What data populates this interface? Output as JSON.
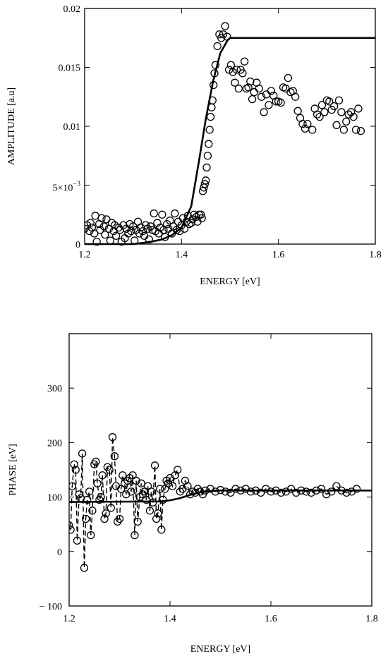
{
  "chart_data": [
    {
      "type": "scatter",
      "xlabel": "ENERGY [eV]",
      "ylabel": "AMPLITUDE [a.u]",
      "xlim": [
        1.2,
        1.8
      ],
      "ylim": [
        0,
        0.02
      ],
      "x_ticks": [
        {
          "value": 1.2,
          "label": "1.2"
        },
        {
          "value": 1.4,
          "label": "1.4"
        },
        {
          "value": 1.6,
          "label": "1.6"
        },
        {
          "value": 1.8,
          "label": "1.8"
        }
      ],
      "y_ticks": [
        {
          "value": 0,
          "label": "0"
        },
        {
          "value": 0.005,
          "label": "5×10",
          "sup": "−3"
        },
        {
          "value": 0.01,
          "label": "0.01"
        },
        {
          "value": 0.015,
          "label": "0.015"
        },
        {
          "value": 0.02,
          "label": "0.02"
        }
      ],
      "series": [
        {
          "style": "solid-line",
          "x": [
            1.2,
            1.3,
            1.32,
            1.34,
            1.36,
            1.38,
            1.4,
            1.42,
            1.435,
            1.45,
            1.465,
            1.48,
            1.495,
            1.5,
            1.8
          ],
          "y": [
            0,
            0,
            0.0001,
            0.00022,
            0.0004,
            0.00075,
            0.0014,
            0.0032,
            0.0068,
            0.0106,
            0.0138,
            0.0162,
            0.0173,
            0.0175,
            0.0175
          ]
        },
        {
          "style": "circles",
          "x": [
            1.2,
            1.205,
            1.21,
            1.212,
            1.215,
            1.22,
            1.222,
            1.225,
            1.23,
            1.232,
            1.235,
            1.24,
            1.242,
            1.245,
            1.25,
            1.253,
            1.256,
            1.26,
            1.262,
            1.265,
            1.27,
            1.273,
            1.276,
            1.28,
            1.283,
            1.286,
            1.29,
            1.293,
            1.296,
            1.3,
            1.303,
            1.306,
            1.31,
            1.313,
            1.316,
            1.32,
            1.323,
            1.326,
            1.33,
            1.333,
            1.336,
            1.34,
            1.343,
            1.346,
            1.35,
            1.353,
            1.356,
            1.36,
            1.363,
            1.366,
            1.37,
            1.373,
            1.376,
            1.38,
            1.383,
            1.386,
            1.39,
            1.393,
            1.396,
            1.4,
            1.403,
            1.406,
            1.41,
            1.413,
            1.416,
            1.42,
            1.423,
            1.426,
            1.43,
            1.433,
            1.436,
            1.44,
            1.442,
            1.444,
            1.446,
            1.448,
            1.45,
            1.452,
            1.454,
            1.456,
            1.458,
            1.46,
            1.462,
            1.464,
            1.466,
            1.468,
            1.47,
            1.474,
            1.478,
            1.482,
            1.486,
            1.49,
            1.494,
            1.498,
            1.502,
            1.506,
            1.51,
            1.514,
            1.518,
            1.522,
            1.526,
            1.53,
            1.534,
            1.538,
            1.542,
            1.546,
            1.55,
            1.555,
            1.56,
            1.565,
            1.57,
            1.575,
            1.58,
            1.585,
            1.59,
            1.595,
            1.6,
            1.605,
            1.61,
            1.615,
            1.62,
            1.625,
            1.63,
            1.635,
            1.64,
            1.645,
            1.65,
            1.655,
            1.66,
            1.67,
            1.675,
            1.68,
            1.685,
            1.69,
            1.695,
            1.7,
            1.705,
            1.71,
            1.715,
            1.72,
            1.725,
            1.73,
            1.735,
            1.74,
            1.745,
            1.75,
            1.755,
            1.76,
            1.765,
            1.77
          ],
          "y": [
            0.0013,
            0.0016,
            0.0011,
            0.0018,
            0.0014,
            0.0009,
            0.0024,
            0.0002,
            0.0017,
            0.0012,
            0.0022,
            0.0015,
            0.0008,
            0.0021,
            0.0013,
            0.0003,
            0.0018,
            0.0011,
            0.0016,
            0.0007,
            0.0014,
            0.0012,
            0.0002,
            0.0016,
            0.0005,
            0.0013,
            0.0009,
            0.0017,
            0.0011,
            0.0015,
            0.0003,
            0.0012,
            0.0019,
            0.0009,
            0.0014,
            0.0011,
            0.0007,
            0.0016,
            0.0013,
            0.0004,
            0.0015,
            0.0012,
            0.0026,
            0.0011,
            0.0018,
            0.0009,
            0.0014,
            0.0025,
            0.0012,
            0.0006,
            0.0017,
            0.0013,
            0.002,
            0.0009,
            0.0015,
            0.0026,
            0.0012,
            0.0019,
            0.0011,
            0.0016,
            0.0022,
            0.0013,
            0.0019,
            0.0024,
            0.0017,
            0.0018,
            0.0021,
            0.0025,
            0.0023,
            0.0019,
            0.0025,
            0.0025,
            0.0022,
            0.0045,
            0.0048,
            0.0051,
            0.0054,
            0.0065,
            0.0075,
            0.0085,
            0.0097,
            0.0108,
            0.0116,
            0.0122,
            0.0135,
            0.0145,
            0.0152,
            0.0168,
            0.0178,
            0.0175,
            0.0178,
            0.0185,
            0.0176,
            0.0148,
            0.0152,
            0.0146,
            0.0137,
            0.0148,
            0.0132,
            0.0148,
            0.0145,
            0.0155,
            0.0132,
            0.0133,
            0.0138,
            0.0123,
            0.0129,
            0.0137,
            0.0132,
            0.0125,
            0.0112,
            0.0127,
            0.0118,
            0.013,
            0.0126,
            0.0121,
            0.0121,
            0.012,
            0.0133,
            0.0132,
            0.0141,
            0.0129,
            0.013,
            0.0125,
            0.0113,
            0.0107,
            0.0102,
            0.0098,
            0.0102,
            0.0097,
            0.0115,
            0.011,
            0.0108,
            0.0118,
            0.0112,
            0.0122,
            0.0121,
            0.0114,
            0.0117,
            0.0101,
            0.0122,
            0.0112,
            0.0097,
            0.0104,
            0.011,
            0.0112,
            0.0108,
            0.0097,
            0.0115,
            0.0096
          ]
        }
      ]
    },
    {
      "type": "scatter",
      "xlabel": "ENERGY [eV]",
      "ylabel": "PHASE [eV]",
      "xlim": [
        1.2,
        1.8
      ],
      "ylim": [
        -100,
        400
      ],
      "x_ticks": [
        {
          "value": 1.2,
          "label": "1.2"
        },
        {
          "value": 1.4,
          "label": "1.4"
        },
        {
          "value": 1.6,
          "label": "1.6"
        },
        {
          "value": 1.8,
          "label": "1.8"
        }
      ],
      "y_ticks": [
        {
          "value": -100,
          "label": "− 100"
        },
        {
          "value": 0,
          "label": "0"
        },
        {
          "value": 100,
          "label": "100"
        },
        {
          "value": 200,
          "label": "200"
        },
        {
          "value": 300,
          "label": "300"
        }
      ],
      "series": [
        {
          "style": "solid-line",
          "x": [
            1.2,
            1.38,
            1.4,
            1.42,
            1.44,
            1.46,
            1.48,
            1.5,
            1.55,
            1.8
          ],
          "y": [
            91,
            92,
            94,
            98,
            104,
            109,
            111,
            112,
            112,
            112
          ]
        },
        {
          "style": "circles-dashed",
          "x": [
            1.2,
            1.203,
            1.206,
            1.21,
            1.213,
            1.216,
            1.22,
            1.223,
            1.226,
            1.23,
            1.233,
            1.236,
            1.24,
            1.243,
            1.246,
            1.25,
            1.253,
            1.256,
            1.26,
            1.263,
            1.266,
            1.27,
            1.273,
            1.276,
            1.28,
            1.283,
            1.286,
            1.29,
            1.293,
            1.296,
            1.3,
            1.303,
            1.306,
            1.31,
            1.313,
            1.316,
            1.32,
            1.323,
            1.326,
            1.33,
            1.333,
            1.336,
            1.34,
            1.343,
            1.346,
            1.35,
            1.353,
            1.356,
            1.36,
            1.363,
            1.366,
            1.37,
            1.373,
            1.376,
            1.38,
            1.383,
            1.386,
            1.39,
            1.393,
            1.396,
            1.4,
            1.405,
            1.41,
            1.415,
            1.42,
            1.425,
            1.43,
            1.435,
            1.44,
            1.445,
            1.45,
            1.455,
            1.46,
            1.465,
            1.47,
            1.48,
            1.49,
            1.5,
            1.51,
            1.52,
            1.53,
            1.54,
            1.55,
            1.56,
            1.57,
            1.58,
            1.59,
            1.6,
            1.61,
            1.62,
            1.63,
            1.64,
            1.65,
            1.66,
            1.67,
            1.68,
            1.69,
            1.7,
            1.71,
            1.72,
            1.73,
            1.74,
            1.75,
            1.76,
            1.77
          ],
          "y": [
            48,
            40,
            120,
            160,
            150,
            20,
            105,
            98,
            180,
            -30,
            60,
            95,
            110,
            30,
            75,
            160,
            165,
            125,
            95,
            100,
            140,
            60,
            70,
            155,
            150,
            80,
            210,
            175,
            120,
            55,
            60,
            115,
            140,
            125,
            105,
            130,
            135,
            110,
            140,
            30,
            130,
            55,
            100,
            125,
            105,
            110,
            95,
            120,
            75,
            110,
            90,
            158,
            60,
            70,
            115,
            40,
            95,
            115,
            130,
            125,
            135,
            120,
            140,
            150,
            110,
            115,
            130,
            120,
            105,
            110,
            108,
            115,
            110,
            105,
            112,
            115,
            110,
            113,
            110,
            108,
            115,
            112,
            115,
            110,
            112,
            108,
            115,
            110,
            112,
            108,
            110,
            115,
            108,
            112,
            110,
            108,
            112,
            115,
            105,
            110,
            120,
            112,
            108,
            110,
            115
          ]
        }
      ]
    }
  ]
}
